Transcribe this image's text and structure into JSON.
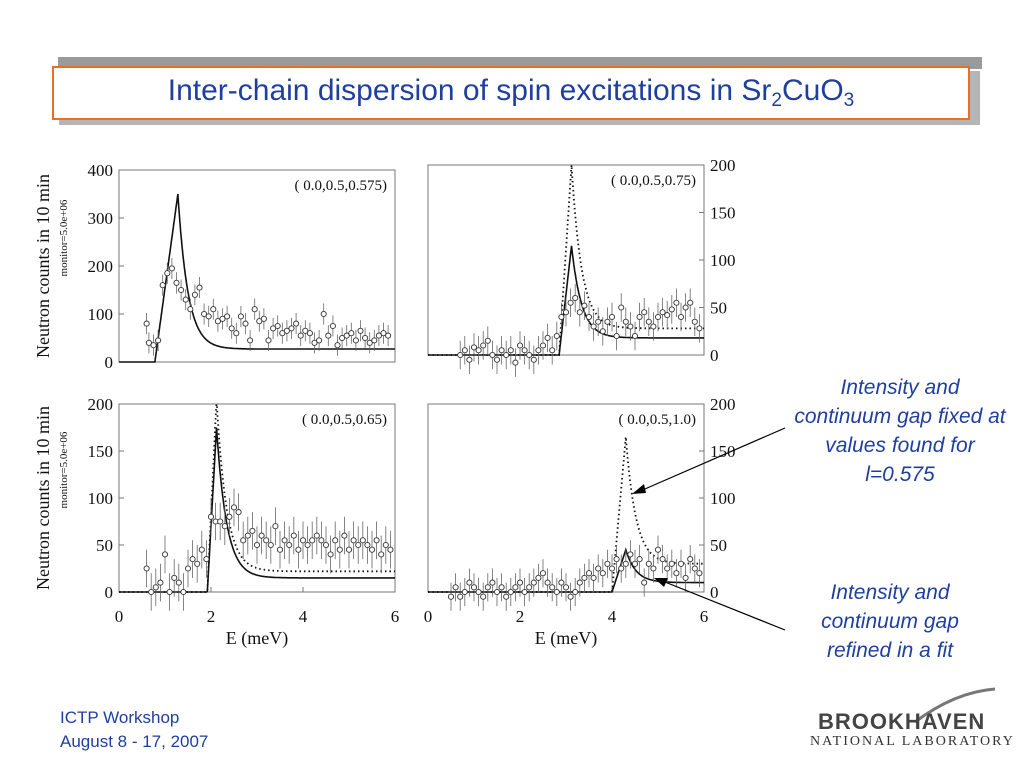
{
  "slide": {
    "title_main": "Inter-chain dispersion of spin excitations in Sr",
    "title_sub1": "2",
    "title_mid": "CuO",
    "title_sub2": "3",
    "annotation_1": "Intensity and continuum gap fixed at values found for l=0.575",
    "annotation_2": "Intensity and continuum gap refined in a fit",
    "footer_line1": "ICTP Workshop",
    "footer_line2": "August 8 - 17, 2007",
    "logo_top": "BROOKHAVEN",
    "logo_bottom": "NATIONAL LABORATORY"
  },
  "colors": {
    "title_text": "#1f3f9f",
    "title_border": "#e8701f",
    "title_shadow": "#b5b5b5",
    "top_bar": "#9a9a9a",
    "plot_ink": "#111111",
    "frame": "#777777"
  },
  "chart_data": [
    {
      "type": "scatter",
      "title": "( 0.0,0.5,0.575)",
      "xlabel": "",
      "ylabel": "Neutron counts in 10 min",
      "ylabel_small": "monitor=5.0e+06",
      "xlim": [
        0,
        6
      ],
      "ylim": [
        0,
        400
      ],
      "y_ticks": [
        "0",
        "100",
        "200",
        "300",
        "400"
      ],
      "x_ticks": [],
      "y_axis_side": "left",
      "points_x": [
        0.6,
        0.65,
        0.75,
        0.85,
        0.95,
        1.05,
        1.15,
        1.25,
        1.35,
        1.45,
        1.55,
        1.65,
        1.75,
        1.85,
        1.95,
        2.05,
        2.15,
        2.25,
        2.35,
        2.45,
        2.55,
        2.65,
        2.75,
        2.85,
        2.95,
        3.05,
        3.15,
        3.25,
        3.35,
        3.45,
        3.55,
        3.65,
        3.75,
        3.85,
        3.95,
        4.05,
        4.15,
        4.25,
        4.35,
        4.45,
        4.55,
        4.65,
        4.75,
        4.85,
        4.95,
        5.05,
        5.15,
        5.25,
        5.35,
        5.45,
        5.55,
        5.65,
        5.75,
        5.85
      ],
      "points_y": [
        80,
        40,
        35,
        45,
        160,
        185,
        195,
        165,
        150,
        130,
        110,
        140,
        155,
        100,
        95,
        110,
        85,
        90,
        95,
        70,
        60,
        95,
        80,
        45,
        110,
        85,
        90,
        45,
        70,
        75,
        60,
        65,
        70,
        80,
        55,
        65,
        60,
        40,
        45,
        100,
        55,
        75,
        35,
        50,
        55,
        60,
        45,
        65,
        50,
        40,
        45,
        55,
        60,
        55
      ],
      "error": 22,
      "curves": [
        {
          "style": "solid",
          "gap": 0.78,
          "peak": 1.28,
          "amplitude": 350,
          "tail": 27
        }
      ]
    },
    {
      "type": "scatter",
      "title": "( 0.0,0.5,0.75)",
      "xlabel": "",
      "ylabel": "",
      "xlim": [
        0,
        6
      ],
      "ylim": [
        0,
        200
      ],
      "y_ticks": [
        "0",
        "50",
        "100",
        "150",
        "200"
      ],
      "x_ticks": [],
      "y_axis_side": "right",
      "points_x": [
        0.7,
        0.8,
        0.9,
        1.0,
        1.1,
        1.2,
        1.3,
        1.4,
        1.5,
        1.6,
        1.7,
        1.8,
        1.9,
        2.0,
        2.1,
        2.2,
        2.3,
        2.4,
        2.5,
        2.6,
        2.7,
        2.8,
        2.9,
        3.0,
        3.1,
        3.2,
        3.3,
        3.4,
        3.5,
        3.6,
        3.7,
        3.8,
        3.9,
        4.0,
        4.1,
        4.2,
        4.3,
        4.4,
        4.5,
        4.6,
        4.7,
        4.8,
        4.9,
        5.0,
        5.1,
        5.2,
        5.3,
        5.4,
        5.5,
        5.6,
        5.7,
        5.8,
        5.9
      ],
      "points_y": [
        0,
        5,
        -5,
        8,
        5,
        10,
        15,
        0,
        -5,
        5,
        0,
        5,
        -8,
        10,
        5,
        0,
        -5,
        5,
        10,
        18,
        5,
        20,
        40,
        45,
        55,
        60,
        45,
        52,
        40,
        30,
        35,
        25,
        35,
        40,
        20,
        50,
        35,
        30,
        20,
        40,
        45,
        35,
        30,
        40,
        45,
        42,
        48,
        55,
        40,
        50,
        55,
        35,
        28
      ],
      "error": 15,
      "curves": [
        {
          "style": "dotted",
          "gap": 2.85,
          "peak": 3.12,
          "amplitude": 200,
          "tail": 28
        },
        {
          "style": "solid",
          "gap": 2.85,
          "peak": 3.12,
          "amplitude": 115,
          "tail": 18
        }
      ]
    },
    {
      "type": "scatter",
      "title": "( 0.0,0.5,0.65)",
      "xlabel": "E (meV)",
      "ylabel": "Neutron counts in 10 min",
      "ylabel_small": "monitor=5.0e+06",
      "xlim": [
        0,
        6
      ],
      "ylim": [
        0,
        200
      ],
      "y_ticks": [
        "0",
        "50",
        "100",
        "150",
        "200"
      ],
      "x_ticks": [
        "0",
        "2",
        "4",
        "6"
      ],
      "y_axis_side": "left",
      "points_x": [
        0.6,
        0.7,
        0.8,
        0.9,
        1.0,
        1.1,
        1.2,
        1.3,
        1.4,
        1.5,
        1.6,
        1.7,
        1.8,
        1.9,
        2.0,
        2.1,
        2.2,
        2.3,
        2.4,
        2.5,
        2.6,
        2.7,
        2.8,
        2.9,
        3.0,
        3.1,
        3.2,
        3.3,
        3.4,
        3.5,
        3.6,
        3.7,
        3.8,
        3.9,
        4.0,
        4.1,
        4.2,
        4.3,
        4.4,
        4.5,
        4.6,
        4.7,
        4.8,
        4.9,
        5.0,
        5.1,
        5.2,
        5.3,
        5.4,
        5.5,
        5.6,
        5.7,
        5.8,
        5.9
      ],
      "points_y": [
        25,
        0,
        5,
        10,
        40,
        0,
        15,
        10,
        0,
        25,
        35,
        30,
        45,
        35,
        80,
        75,
        75,
        70,
        80,
        90,
        85,
        55,
        60,
        65,
        50,
        60,
        55,
        50,
        70,
        45,
        55,
        50,
        60,
        45,
        55,
        50,
        55,
        60,
        55,
        50,
        40,
        55,
        45,
        60,
        45,
        55,
        50,
        55,
        50,
        45,
        55,
        40,
        50,
        45
      ],
      "error": 20,
      "curves": [
        {
          "style": "dotted",
          "gap": 1.92,
          "peak": 2.12,
          "amplitude": 205,
          "tail": 22
        },
        {
          "style": "solid",
          "gap": 1.92,
          "peak": 2.12,
          "amplitude": 175,
          "tail": 15
        }
      ]
    },
    {
      "type": "scatter",
      "title": "( 0.0,0.5,1.0)",
      "xlabel": "E (meV)",
      "ylabel": "",
      "xlim": [
        0,
        6
      ],
      "ylim": [
        0,
        200
      ],
      "y_ticks": [
        "0",
        "50",
        "100",
        "150",
        "200"
      ],
      "x_ticks": [
        "0",
        "2",
        "4",
        "6"
      ],
      "y_axis_side": "right",
      "points_x": [
        0.5,
        0.6,
        0.7,
        0.8,
        0.9,
        1.0,
        1.1,
        1.2,
        1.3,
        1.4,
        1.5,
        1.6,
        1.7,
        1.8,
        1.9,
        2.0,
        2.1,
        2.2,
        2.3,
        2.4,
        2.5,
        2.6,
        2.7,
        2.8,
        2.9,
        3.0,
        3.1,
        3.2,
        3.3,
        3.4,
        3.5,
        3.6,
        3.7,
        3.8,
        3.9,
        4.0,
        4.1,
        4.2,
        4.3,
        4.4,
        4.5,
        4.6,
        4.7,
        4.8,
        4.9,
        5.0,
        5.1,
        5.2,
        5.3,
        5.4,
        5.5,
        5.6,
        5.7,
        5.8,
        5.9
      ],
      "points_y": [
        -5,
        5,
        -5,
        0,
        10,
        5,
        0,
        -5,
        5,
        10,
        0,
        5,
        -5,
        0,
        5,
        10,
        0,
        5,
        10,
        15,
        20,
        10,
        5,
        0,
        10,
        5,
        -5,
        0,
        10,
        15,
        20,
        15,
        25,
        20,
        30,
        25,
        35,
        25,
        30,
        40,
        30,
        35,
        10,
        30,
        25,
        45,
        35,
        25,
        30,
        20,
        30,
        15,
        35,
        25,
        20
      ],
      "error": 15,
      "curves": [
        {
          "style": "dotted",
          "gap": 4.0,
          "peak": 4.3,
          "amplitude": 165,
          "tail": 30
        },
        {
          "style": "solid",
          "gap": 4.0,
          "peak": 4.3,
          "amplitude": 45,
          "tail": 10
        }
      ]
    }
  ]
}
